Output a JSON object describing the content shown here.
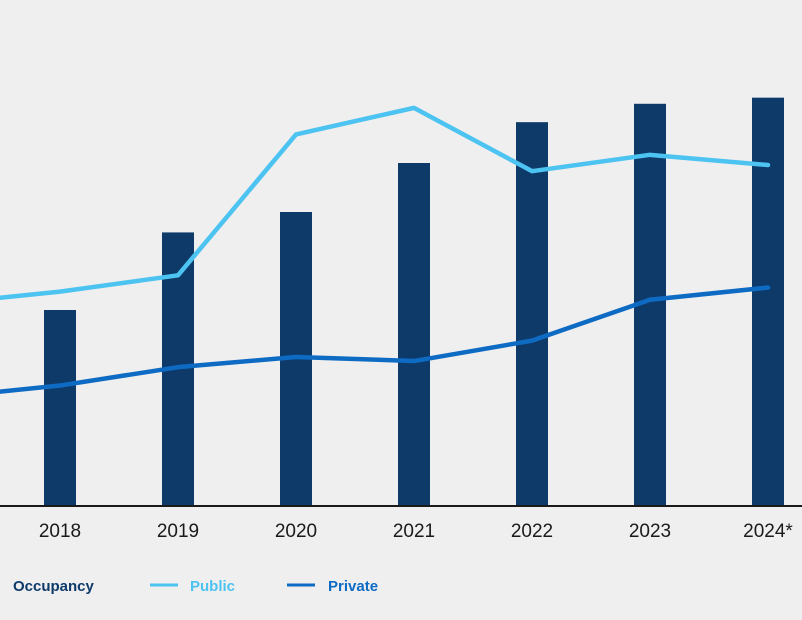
{
  "chart_data": {
    "type": "bar",
    "categories": [
      "2018",
      "2019",
      "2020",
      "2021",
      "2022",
      "2023",
      "2024*"
    ],
    "bars": {
      "name": "Occupancy",
      "color": "#0e3a6a",
      "values": [
        48,
        67,
        72,
        84,
        94,
        98.5,
        100
      ]
    },
    "series": [
      {
        "name": "Public",
        "color": "#4cc3f1",
        "values": [
          52.5,
          56.5,
          91,
          97.5,
          82,
          86,
          83.5
        ]
      },
      {
        "name": "Private",
        "color": "#0e6bc4",
        "values": [
          29.5,
          34,
          36.5,
          35.5,
          40.5,
          50.5,
          53.5
        ]
      }
    ],
    "ylim": [
      0,
      120
    ],
    "grid": false,
    "legend_position": "bottom-left",
    "line_start_values": {
      "Public": 51,
      "Private": 28
    }
  }
}
